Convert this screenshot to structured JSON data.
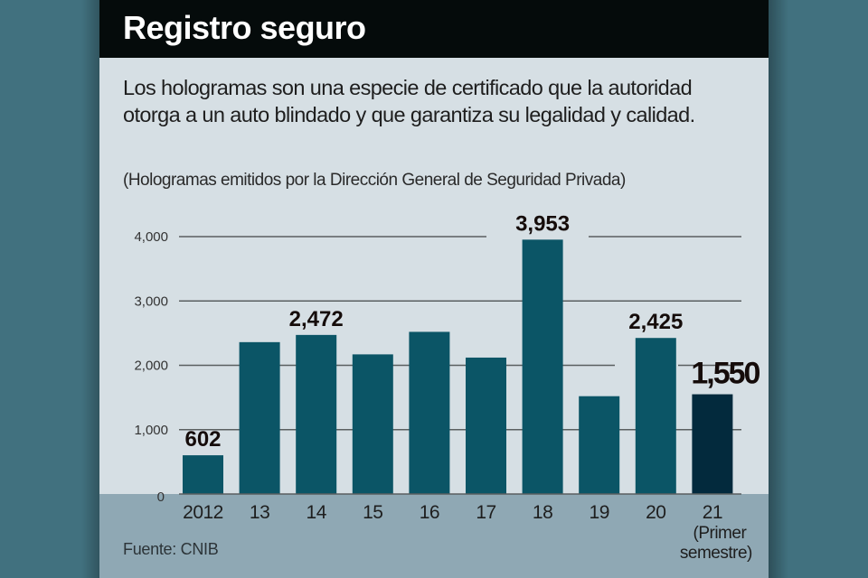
{
  "header": {
    "title": "Registro seguro"
  },
  "description": "Los hologramas son una especie de certificado que la autoridad otorga a un auto blindado y que garantiza su legalidad y calidad.",
  "source": "Fuente: CNIB",
  "colors": {
    "background": "#41717f",
    "panel": "#d6dfe4",
    "title_bar": "#050b0b",
    "bar": "#0b5566",
    "bar_highlight": "#032a3d",
    "footer_band": "#8fa8b4",
    "gridline": "#5a5f60"
  },
  "chart_data": {
    "type": "bar",
    "title": "Registro seguro",
    "subtitle": "(Hologramas emitidos por la Dirección General de Seguridad Privada)",
    "xlabel": "",
    "ylabel": "",
    "ylim": [
      0,
      4000
    ],
    "yticks": [
      0,
      1000,
      2000,
      3000,
      4000
    ],
    "ytick_labels": [
      "0",
      "1,000",
      "2,000",
      "3,000",
      "4,000"
    ],
    "grid": true,
    "categories": [
      "2012",
      "13",
      "14",
      "15",
      "16",
      "17",
      "18",
      "19",
      "20",
      "21"
    ],
    "category_note": "(Primer semestre)",
    "values": [
      602,
      2360,
      2472,
      2170,
      2520,
      2120,
      3953,
      1520,
      2425,
      1550
    ],
    "data_labels": [
      "602",
      "",
      "2,472",
      "",
      "",
      "",
      "3,953",
      "",
      "2,425",
      "1,550"
    ],
    "highlight_index": 9
  }
}
